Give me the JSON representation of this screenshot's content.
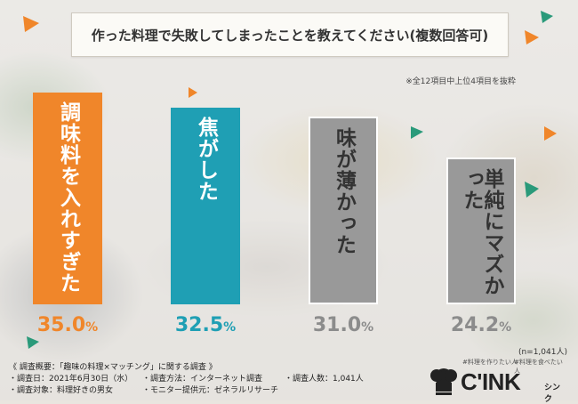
{
  "colors": {
    "bar1": "#f0862a",
    "bar2": "#1f9fb4",
    "bar3": "#999999",
    "bar4": "#999999",
    "value1": "#f0862a",
    "value2": "#1f9fb4",
    "value3": "#8c8c8c",
    "value4": "#8c8c8c"
  },
  "chart_data": {
    "type": "bar",
    "title": "作った料理で失敗してしまったことを教えてください(複数回答可)",
    "note": "※全12項目中上位4項目を抜粋",
    "categories": [
      "調味料を入れすぎた",
      "焦がした",
      "味が薄かった",
      "単純にマズかった"
    ],
    "values": [
      35.0,
      32.5,
      31.0,
      24.2
    ],
    "value_numbers": [
      "35.0",
      "32.5",
      "31.0",
      "24.2"
    ],
    "unit": "%",
    "sample_size": "(n=1,041人)",
    "ylim": [
      0,
      35.0
    ]
  },
  "footer": {
    "heading": "《 調査概要：「趣味の料理×マッチング」に関する調査 》",
    "date": "調査日：2021年6月30日（水）",
    "method": "調査方法：インターネット調査",
    "count": "調査人数：1,041人",
    "target": "調査対象：料理好きの男女",
    "provider": "モニター提供元：ゼネラルリサーチ"
  },
  "logo": {
    "tag1": "#料理を作りたい人",
    "tag2": "#料理を食べたい人",
    "brand": "C'INK",
    "sub": "シンク"
  }
}
